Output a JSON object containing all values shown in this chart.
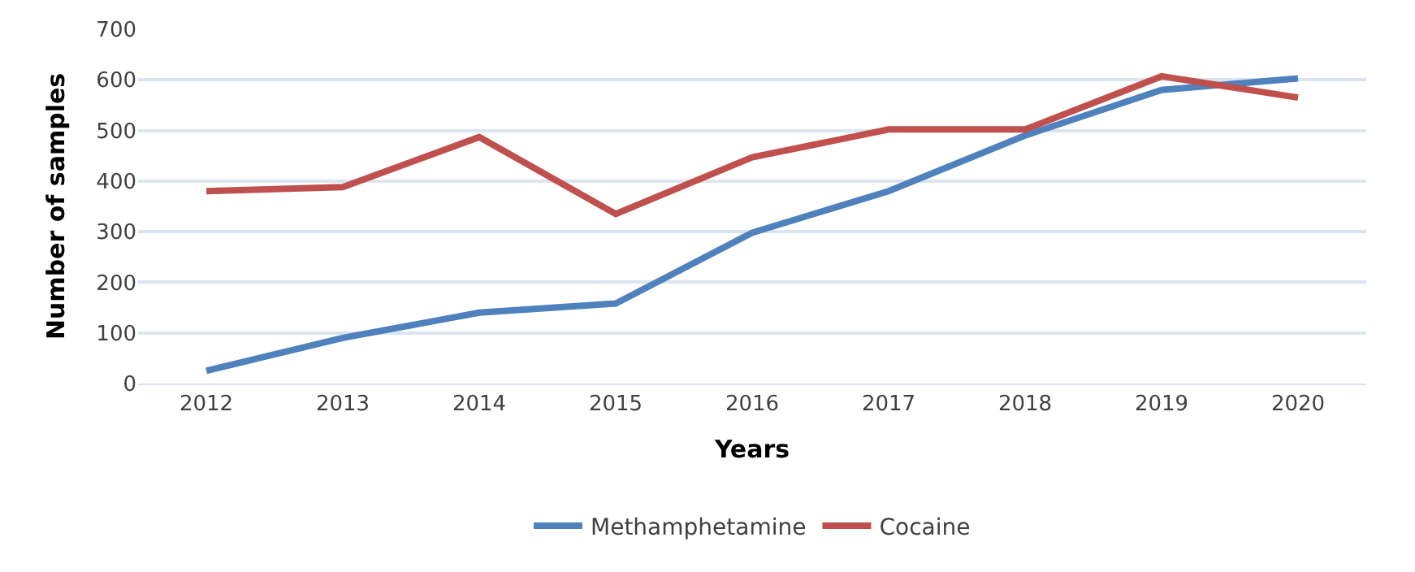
{
  "chart_data": {
    "type": "line",
    "xlabel": "Years",
    "ylabel": "Number of samples",
    "categories": [
      "2012",
      "2013",
      "2014",
      "2015",
      "2016",
      "2017",
      "2018",
      "2019",
      "2020"
    ],
    "series": [
      {
        "name": "Methamphetamine",
        "color": "#4f81bd",
        "values": [
          25,
          90,
          140,
          158,
          298,
          380,
          490,
          580,
          603
        ]
      },
      {
        "name": "Cocaine",
        "color": "#c0504d",
        "values": [
          380,
          388,
          487,
          335,
          447,
          502,
          502,
          607,
          565
        ]
      }
    ],
    "ylim": [
      0,
      700
    ],
    "yticks": [
      0,
      100,
      200,
      300,
      400,
      500,
      600,
      700
    ],
    "grid": "y",
    "legend": "bottom",
    "marker": "none",
    "line_style": "solid"
  }
}
